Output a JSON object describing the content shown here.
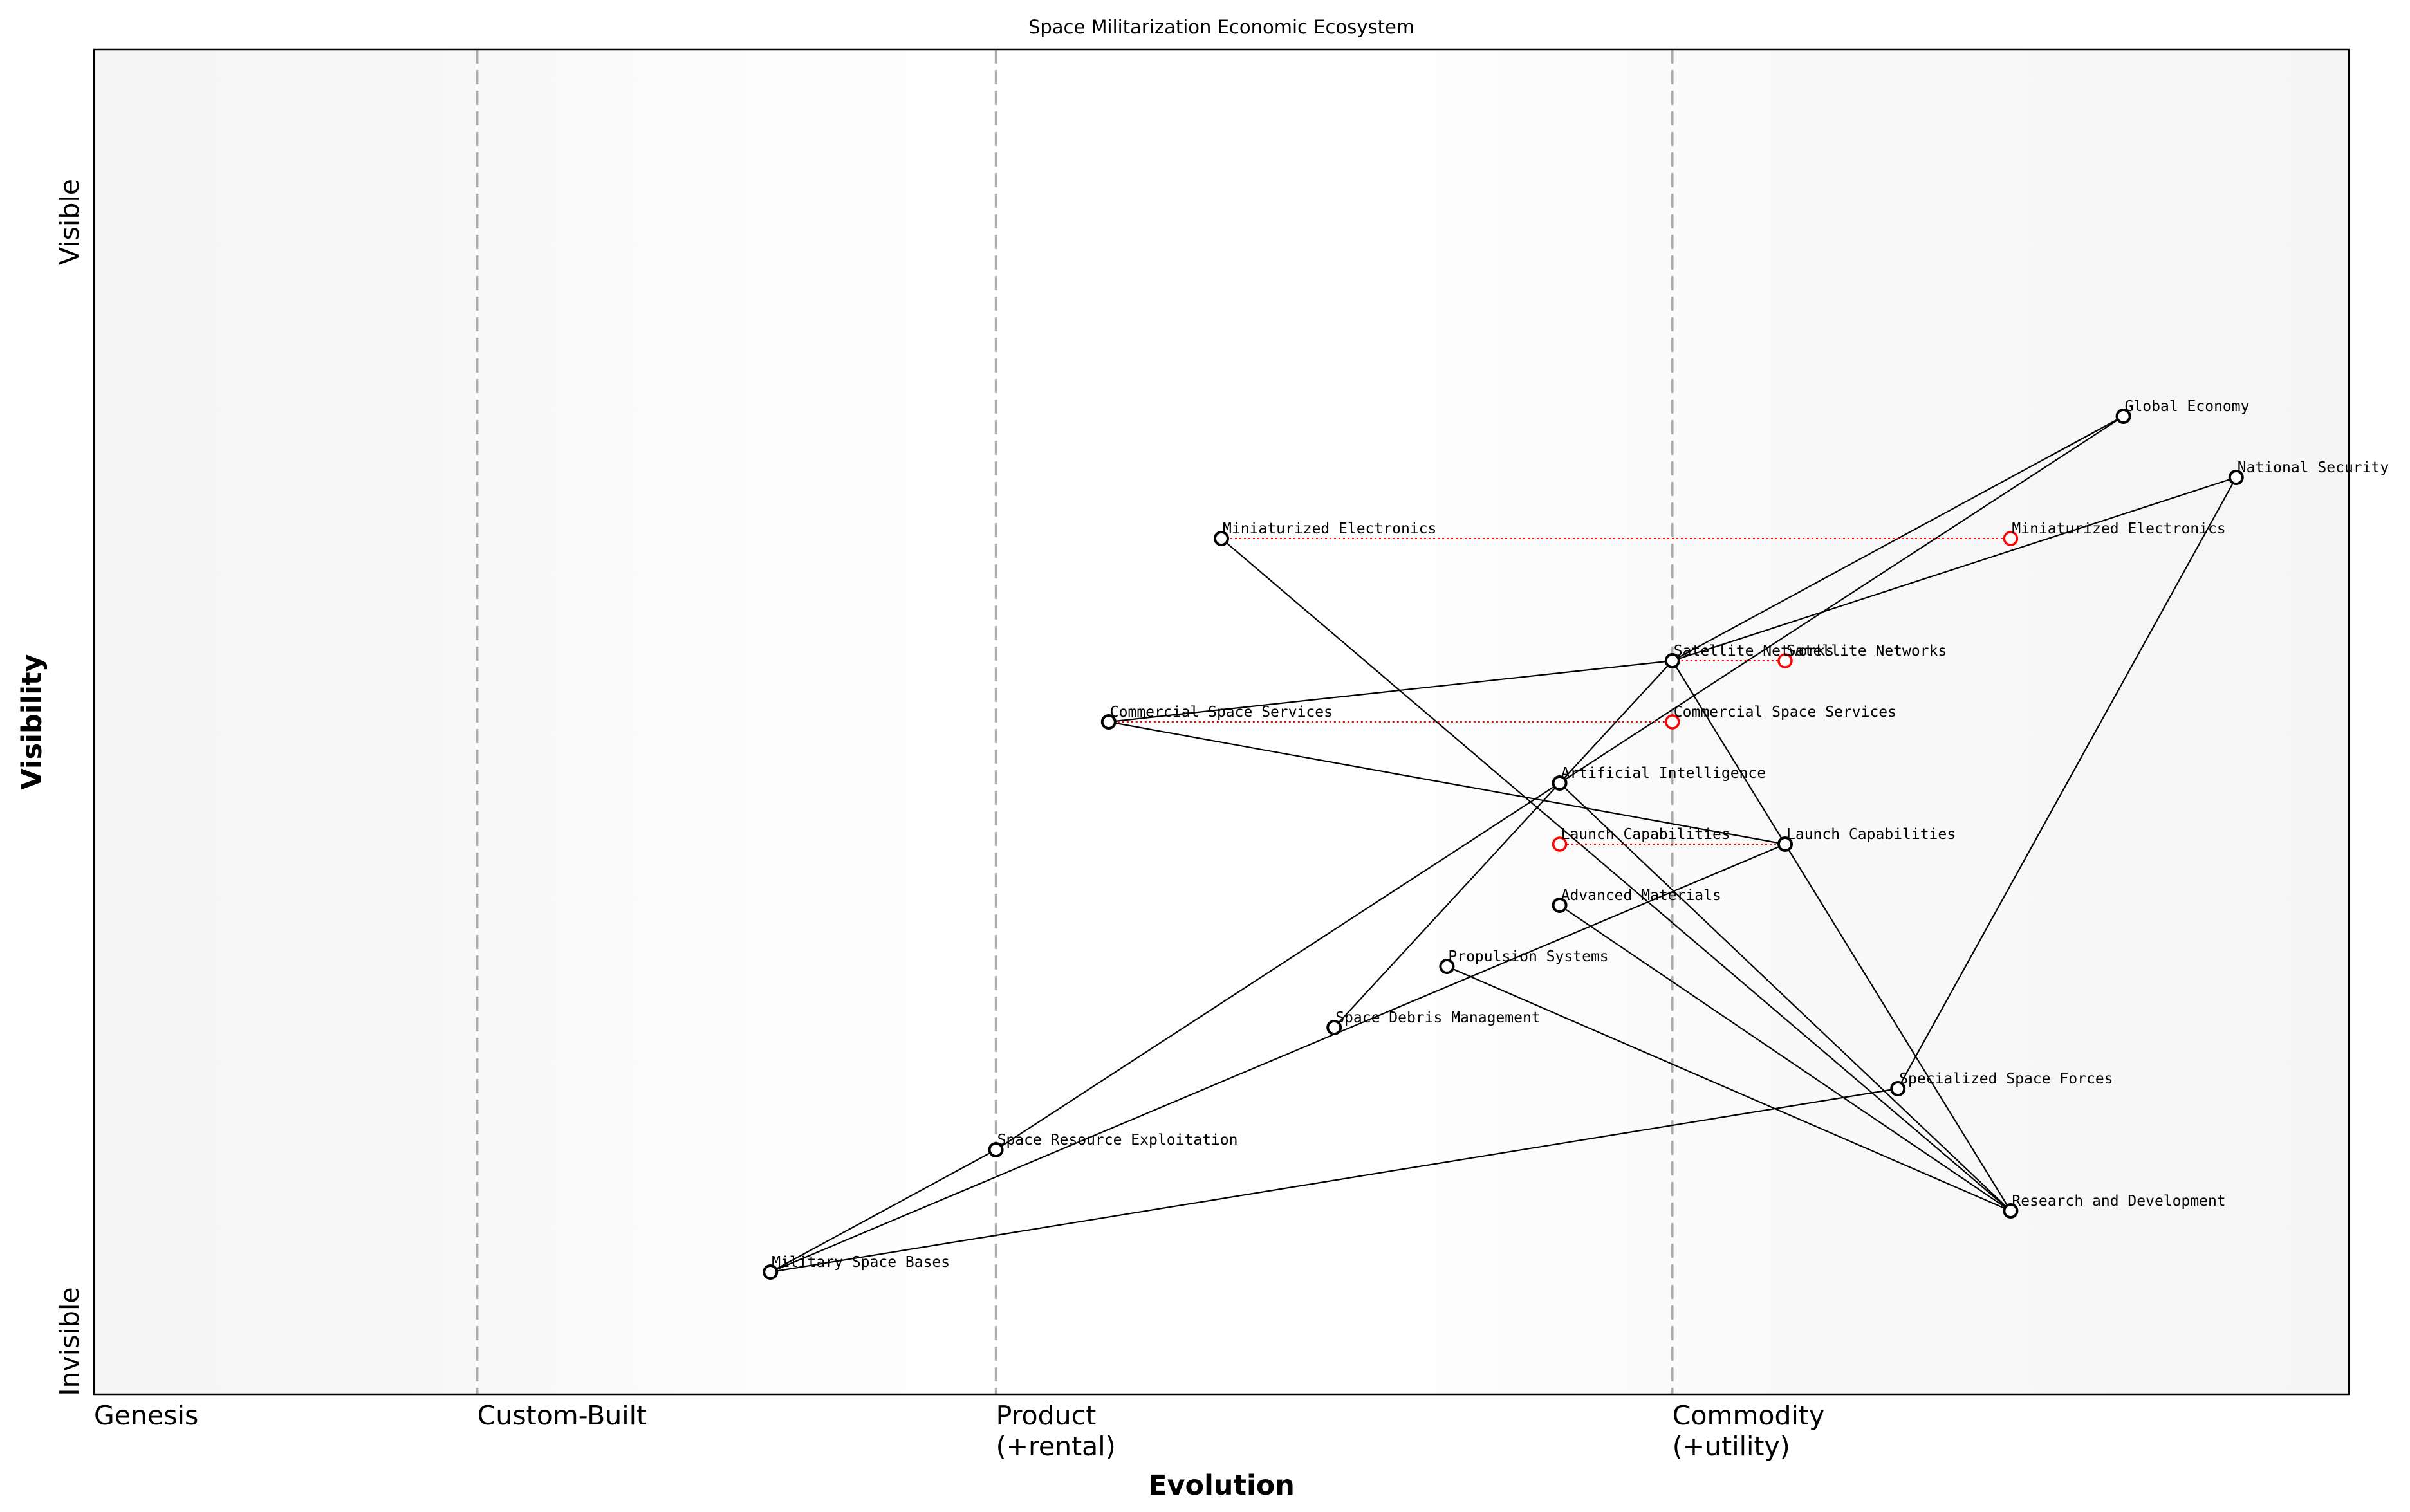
{
  "chart_data": {
    "type": "scatter",
    "title": "Space Militarization Economic Ecosystem",
    "xlabel": "Evolution",
    "ylabel": "Visibility",
    "xlim": [
      0,
      1
    ],
    "ylim": [
      0,
      1.1
    ],
    "grid": false,
    "x_stage_labels": [
      {
        "x": 0.0,
        "label": "Genesis"
      },
      {
        "x": 0.17,
        "label": "Custom-Built"
      },
      {
        "x": 0.4,
        "label": "Product\n(+rental)"
      },
      {
        "x": 0.7,
        "label": "Commodity\n(+utility)"
      }
    ],
    "stage_dividers": [
      0.17,
      0.4,
      0.7
    ],
    "y_labels": {
      "top": "Visible",
      "bottom": "Invisible"
    },
    "components": [
      {
        "name": "Global Economy",
        "x": 0.9,
        "y": 0.8
      },
      {
        "name": "National Security",
        "x": 0.95,
        "y": 0.75
      },
      {
        "name": "Miniaturized Electronics",
        "x": 0.5,
        "y": 0.7
      },
      {
        "name": "Satellite Networks",
        "x": 0.7,
        "y": 0.6
      },
      {
        "name": "Commercial Space Services",
        "x": 0.45,
        "y": 0.55
      },
      {
        "name": "Artificial Intelligence",
        "x": 0.65,
        "y": 0.5
      },
      {
        "name": "Launch Capabilities",
        "x": 0.75,
        "y": 0.45
      },
      {
        "name": "Advanced Materials",
        "x": 0.65,
        "y": 0.4
      },
      {
        "name": "Propulsion Systems",
        "x": 0.6,
        "y": 0.35
      },
      {
        "name": "Space Debris Management",
        "x": 0.55,
        "y": 0.3
      },
      {
        "name": "Specialized Space Forces",
        "x": 0.8,
        "y": 0.25
      },
      {
        "name": "Space Resource Exploitation",
        "x": 0.4,
        "y": 0.2
      },
      {
        "name": "Research and Development",
        "x": 0.85,
        "y": 0.15
      },
      {
        "name": "Military Space Bases",
        "x": 0.3,
        "y": 0.1
      }
    ],
    "evolutions": [
      {
        "name": "Miniaturized Electronics",
        "from_x": 0.5,
        "to_x": 0.85,
        "y": 0.7
      },
      {
        "name": "Satellite Networks",
        "from_x": 0.7,
        "to_x": 0.75,
        "y": 0.6
      },
      {
        "name": "Commercial Space Services",
        "from_x": 0.45,
        "to_x": 0.7,
        "y": 0.55
      },
      {
        "name": "Launch Capabilities",
        "from_x": 0.75,
        "to_x": 0.65,
        "y": 0.45
      }
    ],
    "links": [
      [
        "Global Economy",
        "Satellite Networks"
      ],
      [
        "Global Economy",
        "Artificial Intelligence"
      ],
      [
        "National Security",
        "Satellite Networks"
      ],
      [
        "National Security",
        "Specialized Space Forces"
      ],
      [
        "Satellite Networks",
        "Commercial Space Services"
      ],
      [
        "Satellite Networks",
        "Launch Capabilities"
      ],
      [
        "Satellite Networks",
        "Space Debris Management"
      ],
      [
        "Commercial Space Services",
        "Launch Capabilities"
      ],
      [
        "Miniaturized Electronics",
        "Research and Development"
      ],
      [
        "Artificial Intelligence",
        "Space Resource Exploitation"
      ],
      [
        "Artificial Intelligence",
        "Research and Development"
      ],
      [
        "Launch Capabilities",
        "Research and Development"
      ],
      [
        "Launch Capabilities",
        "Military Space Bases"
      ],
      [
        "Advanced Materials",
        "Research and Development"
      ],
      [
        "Propulsion Systems",
        "Research and Development"
      ],
      [
        "Specialized Space Forces",
        "Military Space Bases"
      ],
      [
        "Space Resource Exploitation",
        "Military Space Bases"
      ]
    ],
    "colors": {
      "component": "#000000",
      "evolved": "#ff0000",
      "divider": "#aaaaaa",
      "zone": "#f5f5f5"
    }
  }
}
